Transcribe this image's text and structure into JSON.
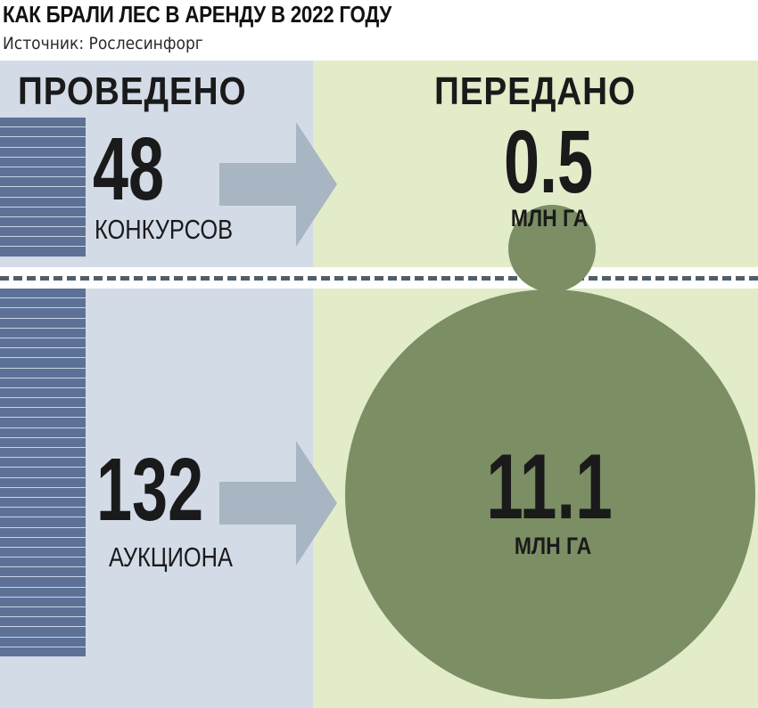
{
  "title": "КАК БРАЛИ ЛЕС В АРЕНДУ В 2022 ГОДУ",
  "source": "Источник: Рослесинфорг",
  "headers": {
    "left": "ПРОВЕДЕНО",
    "right": "ПЕРЕДАНО"
  },
  "colors": {
    "left_panel": "#d3dbe7",
    "right_panel": "#e3ecc9",
    "bar_units": "#5d7197",
    "arrows": "#a8b5c3",
    "circles": "#7b8e64",
    "divider": "#4f5f6a"
  },
  "chart_data": {
    "type": "table",
    "columns": [
      "ПРОВЕДЕНО",
      "ПЕРЕДАНО"
    ],
    "rows": [
      {
        "count": 48,
        "count_display": "48",
        "count_label": "КОНКУРСОВ",
        "area": 0.5,
        "area_display": "0.5",
        "area_unit": "МЛН ГА"
      },
      {
        "count": 132,
        "count_display": "132",
        "count_label": "АУКЦИОНА",
        "area": 11.1,
        "area_display": "11.1",
        "area_unit": "МЛН ГА"
      }
    ]
  }
}
